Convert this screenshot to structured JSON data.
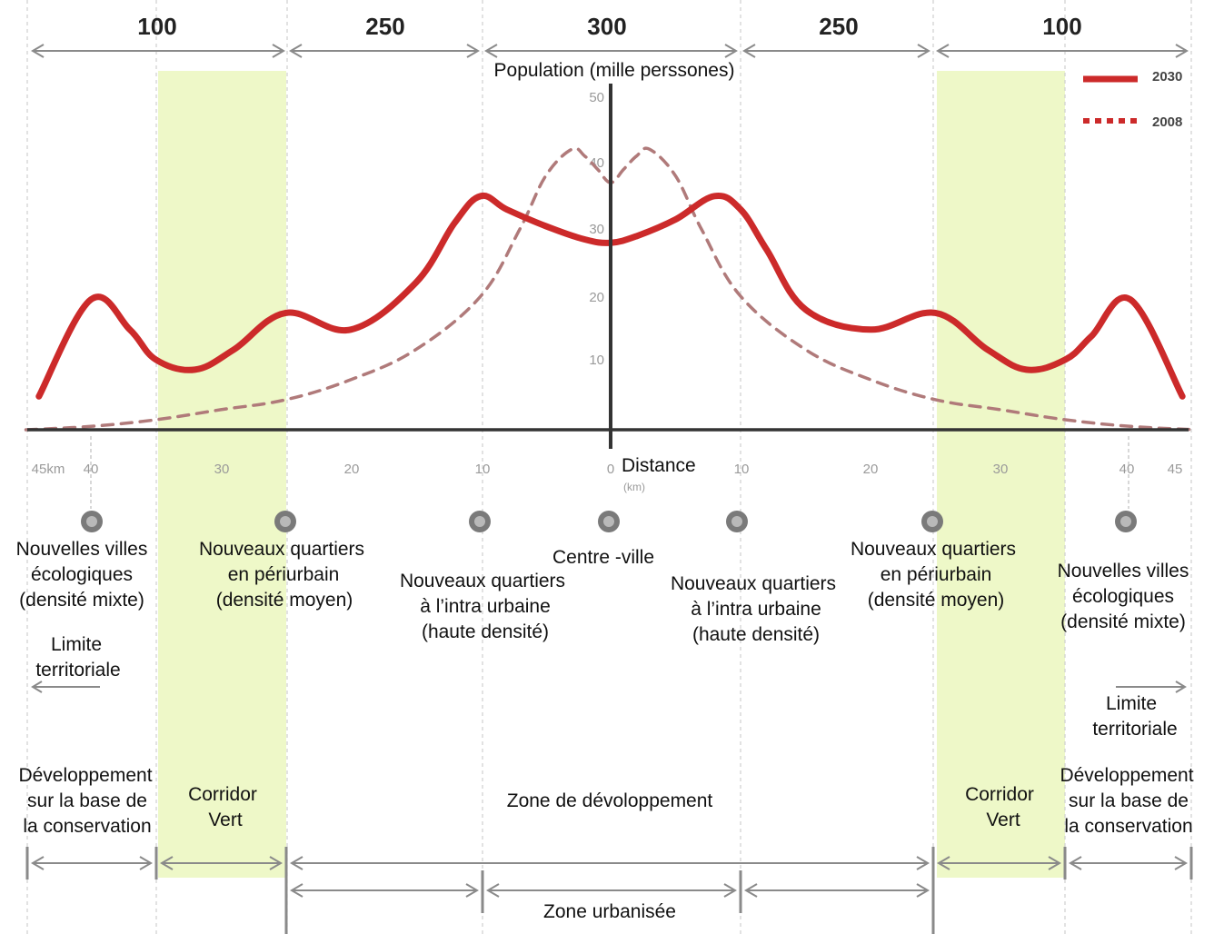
{
  "segments": [
    "100",
    "250",
    "300",
    "250",
    "100"
  ],
  "y_axis": {
    "title": "Population (mille perssones)",
    "ticks": [
      "50",
      "40",
      "30",
      "20",
      "10"
    ]
  },
  "x_axis": {
    "title": "Distance",
    "unit": "(km)",
    "ticks": [
      "45km",
      "40",
      "30",
      "20",
      "10",
      "0",
      "10",
      "20",
      "30",
      "40",
      "45"
    ]
  },
  "legend": [
    {
      "label": "2030",
      "style": "solid",
      "color": "#cc2a2a"
    },
    {
      "label": "2008",
      "style": "dotted",
      "color": "#cc2a2a"
    }
  ],
  "zones": {
    "new_towns_left": [
      "Nouvelles villes",
      "écologiques",
      "(densité mixte)"
    ],
    "periurban_left": [
      "Nouveaux quartiers",
      "en périurbain",
      "(densité moyen)"
    ],
    "intra_left": [
      "Nouveaux quartiers",
      "à l’intra urbaine",
      "(haute densité)"
    ],
    "centre": "Centre -ville",
    "intra_right": [
      "Nouveaux quartiers",
      "à l’intra urbaine",
      "(haute densité)"
    ],
    "periurban_right": [
      "Nouveaux quartiers",
      "en périurbain",
      "(densité moyen)"
    ],
    "new_towns_right": [
      "Nouvelles villes",
      "écologiques",
      "(densité mixte)"
    ]
  },
  "limits": {
    "left": [
      "Limite",
      "territoriale"
    ],
    "right": [
      "Limite",
      "territoriale"
    ]
  },
  "bottom": {
    "conservation_left": [
      "Développement",
      "sur la base de",
      "la conservation"
    ],
    "corridor_left": [
      "Corridor",
      "Vert"
    ],
    "development_zone": "Zone de dévoloppement",
    "corridor_right": [
      "Corridor",
      "Vert"
    ],
    "conservation_right": [
      "Développement",
      "sur la base de",
      "la conservation"
    ],
    "urbanized_zone": "Zone urbanisée"
  },
  "colors": {
    "green_band": "#eef8c8",
    "curve_2030": "#cc2a2a",
    "curve_2008": "#b07a7a",
    "axis": "#333333"
  },
  "chart_data": {
    "type": "line",
    "xlabel": "Distance",
    "ylabel": "Population (mille perssones)",
    "xlim": [
      -45,
      45
    ],
    "ylim": [
      0,
      50
    ],
    "series": [
      {
        "name": "2030",
        "x": [
          -44,
          -40,
          -37,
          -35,
          -32,
          -29,
          -25,
          -20,
          -15,
          -12,
          -10,
          -8,
          -5,
          -2,
          0,
          2,
          5,
          8,
          10,
          12,
          15,
          20,
          25,
          29,
          32,
          35,
          37,
          40,
          44
        ],
        "y": [
          5,
          19.5,
          15,
          10.5,
          9,
          12,
          17.5,
          15,
          22,
          31,
          35,
          33,
          30.5,
          28.5,
          28,
          29,
          31.5,
          35,
          33,
          27,
          18,
          15,
          17.5,
          12,
          9,
          10.5,
          14,
          19.5,
          5
        ]
      },
      {
        "name": "2008",
        "x": [
          -45,
          -40,
          -35,
          -30,
          -25,
          -20,
          -15,
          -10,
          -7,
          -5,
          -3,
          -2,
          -1,
          0,
          1,
          2,
          3,
          5,
          7,
          10,
          15,
          20,
          25,
          30,
          35,
          40,
          45
        ],
        "y": [
          0,
          0.5,
          1.5,
          3,
          4.5,
          7.5,
          12,
          20,
          30,
          38,
          42,
          41,
          39,
          37,
          39,
          41,
          42,
          38,
          30,
          20,
          12,
          7.5,
          4.5,
          3,
          1.5,
          0.5,
          0
        ]
      }
    ]
  }
}
